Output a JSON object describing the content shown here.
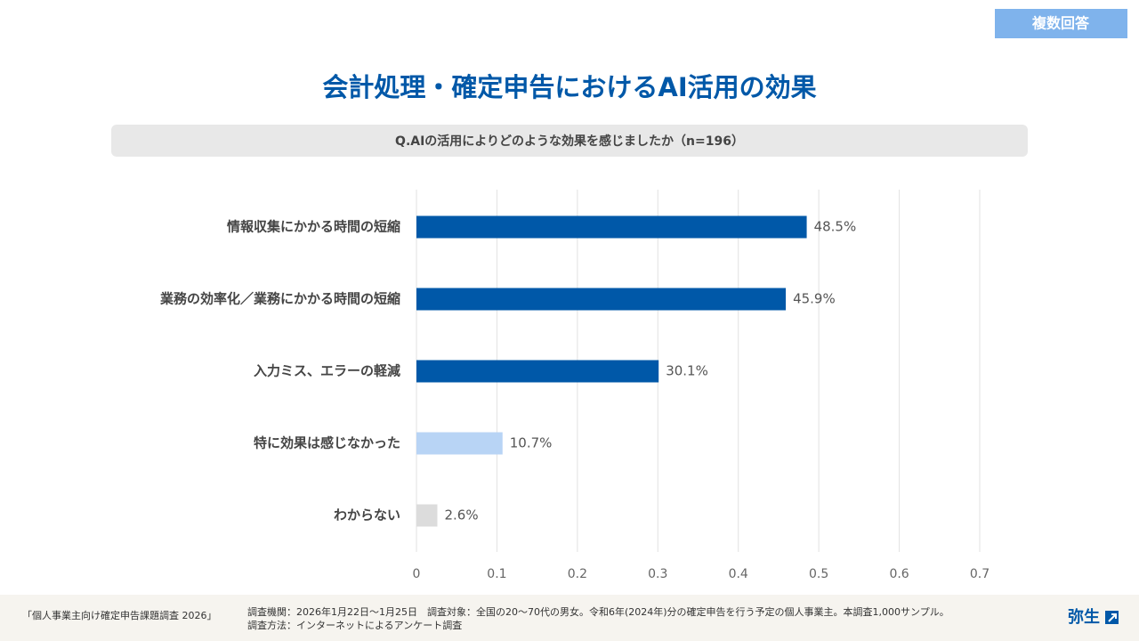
{
  "badge": "複数回答",
  "chart_data": {
    "type": "hbar",
    "title": "会計処理・確定申告におけるAI活用の効果",
    "subtitle": "Q.AIの活用によりどのような効果を感じましたか（n=196）",
    "categories": [
      "情報収集にかかる時間の短縮",
      "業務の効率化／業務にかかる時間の短縮",
      "入力ミス、エラーの軽減",
      "特に効果は感じなかった",
      "わからない"
    ],
    "values": [
      0.485,
      0.459,
      0.301,
      0.107,
      0.026
    ],
    "value_labels": [
      "48.5%",
      "45.9%",
      "30.1%",
      "10.7%",
      "2.6%"
    ],
    "colors": [
      "#0058a8",
      "#0058a8",
      "#0058a8",
      "#b8d4f5",
      "#dcdcdc"
    ],
    "xlim": [
      0,
      0.7
    ],
    "xticks": [
      0,
      0.1,
      0.2,
      0.3,
      0.4,
      0.5,
      0.6,
      0.7
    ],
    "grid": true
  },
  "footer": {
    "survey_name": "「個人事業主向け確定申告課題調査 2026」",
    "line1": "調査機関：2026年1月22日〜1月25日　調査対象：全国の20〜70代の男女。令和6年(2024年)分の確定申告を行う予定の個人事業主。本調査1,000サンプル。",
    "line2": "調査方法：インターネットによるアンケート調査",
    "logo": "弥生"
  }
}
